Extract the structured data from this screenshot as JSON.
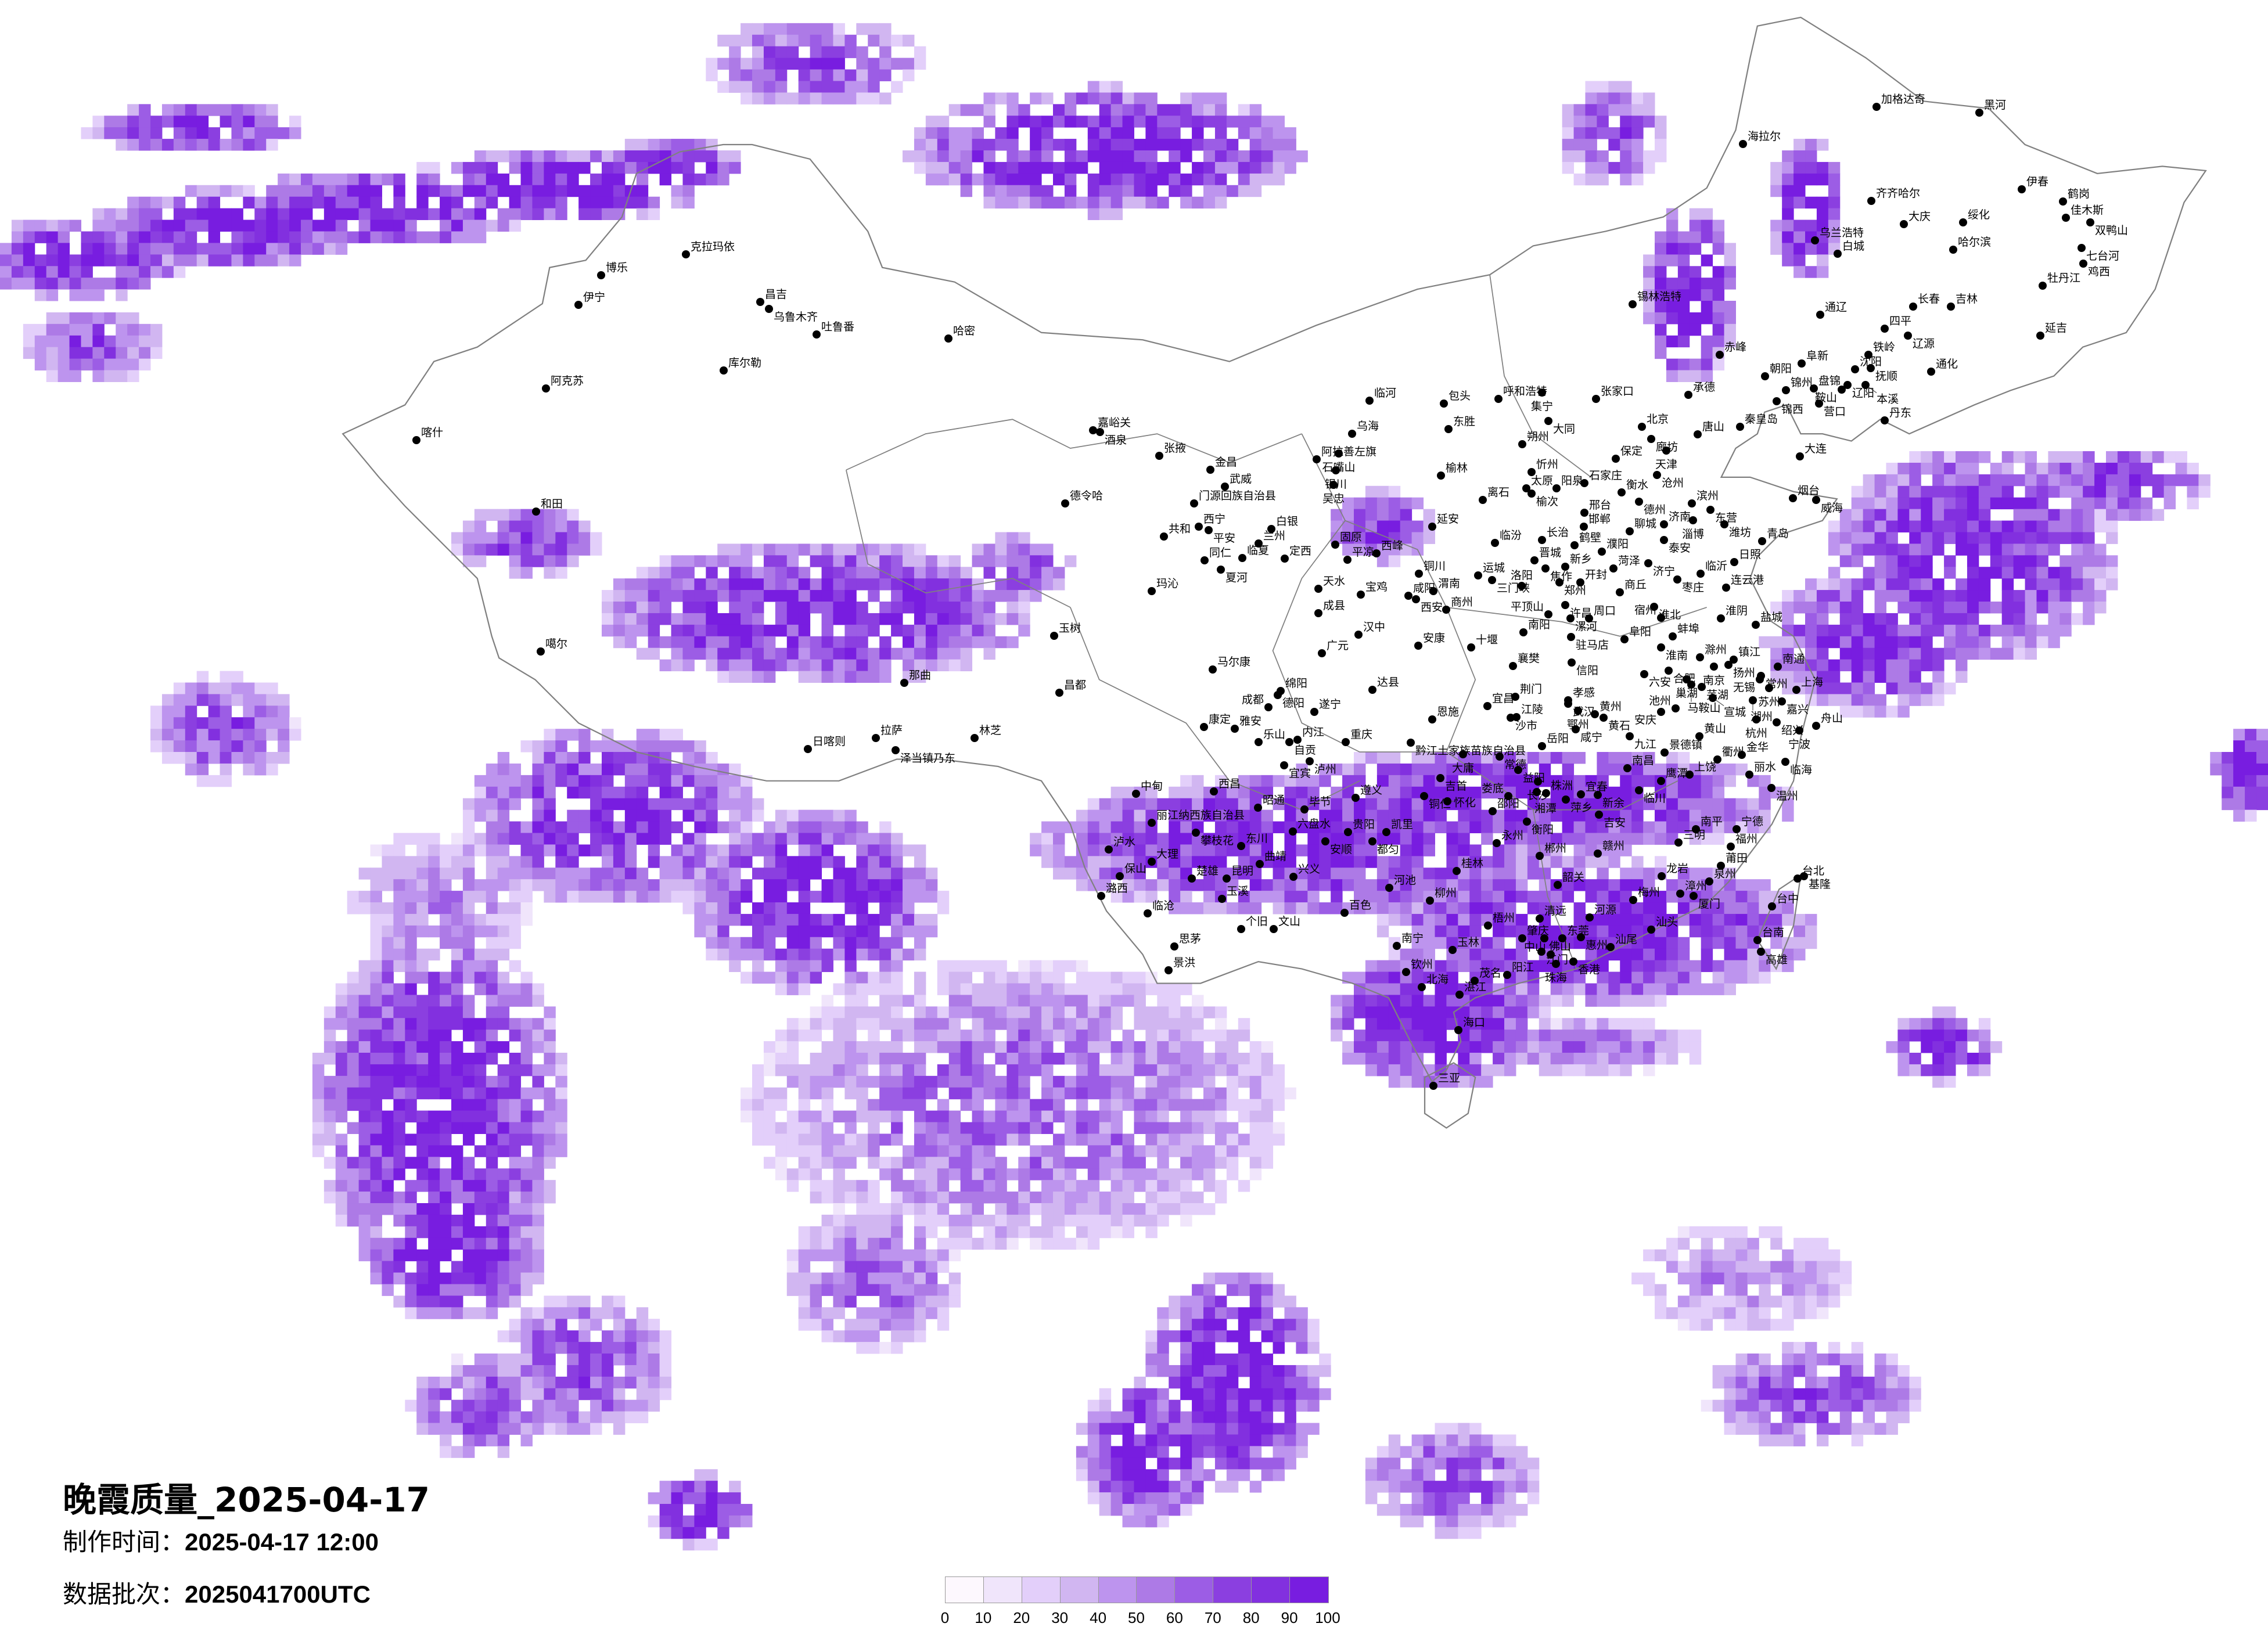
{
  "title": "晚霞质量_2025-04-17",
  "production_time": {
    "label": "制作时间：",
    "value": "2025-04-17 12:00"
  },
  "data_batch": {
    "label": "数据批次：",
    "value": "2025041700UTC"
  },
  "legend": {
    "ticks": [
      "0",
      "10",
      "20",
      "30",
      "40",
      "50",
      "60",
      "70",
      "80",
      "90",
      "100"
    ],
    "colors": [
      "#fdf8fe",
      "#f0e5fb",
      "#e3cffa",
      "#d1b6f1",
      "#bd94ee",
      "#ad7ae6",
      "#9c5de5",
      "#8b3fe0",
      "#8230df",
      "#781de0"
    ]
  },
  "border_color": "#808080",
  "cities": [
    "克拉玛依",
    "博乐",
    "伊宁",
    "昌吉",
    "乌鲁木齐",
    "吐鲁番",
    "哈密",
    "库尔勒",
    "阿克苏",
    "喀什",
    "和田",
    "嘉峪关",
    "酒泉",
    "德令哈",
    "噶尔",
    "玉树",
    "那曲",
    "昌都",
    "日喀则",
    "拉萨",
    "泽当镇乃东",
    "林芝",
    "临河",
    "包头",
    "呼和浩特",
    "集宁",
    "张家口",
    "大同",
    "乌海",
    "东胜",
    "北京",
    "唐山",
    "廊坊",
    "天津",
    "秦皇岛",
    "朔州",
    "张掖",
    "金昌",
    "阿拉善左旗",
    "石嘴山",
    "银川",
    "吴忠",
    "保定",
    "沧州",
    "榆林",
    "忻州",
    "武威",
    "门源回族自治县",
    "太原",
    "榆次",
    "阳泉",
    "石家庄",
    "衡水",
    "德州",
    "离石",
    "滨州",
    "东营",
    "烟台",
    "威海",
    "邢台",
    "西宁",
    "平安",
    "共和",
    "白银",
    "兰州",
    "延安",
    "邯郸",
    "济南",
    "淄博",
    "潍坊",
    "聊城",
    "泰安",
    "青岛",
    "临汾",
    "长治",
    "固原",
    "平凉",
    "西峰",
    "临夏",
    "定西",
    "同仁",
    "夏河",
    "晋城",
    "焦作",
    "新乡",
    "鹤壁",
    "濮阳",
    "菏泽",
    "济宁",
    "日照",
    "临沂",
    "枣庄",
    "连云港",
    "铜川",
    "运城",
    "三门峡",
    "洛阳",
    "郑州",
    "开封",
    "商丘",
    "天水",
    "宝鸡",
    "咸阳",
    "西安",
    "渭南",
    "玛沁",
    "商州",
    "许昌",
    "平顶山",
    "漯河",
    "周口",
    "淮北",
    "宿州",
    "淮阴",
    "盐城",
    "成县",
    "汉中",
    "南阳",
    "驻马店",
    "阜阳",
    "蚌埠",
    "淮南",
    "安康",
    "十堰",
    "广元",
    "马尔康",
    "襄樊",
    "信阳",
    "滁州",
    "镇江",
    "扬州",
    "南通",
    "六安",
    "合肥",
    "巢湖",
    "南京",
    "常州",
    "无锡",
    "马鞍山",
    "芜湖",
    "苏州",
    "上海",
    "绵阳",
    "德阳",
    "达县",
    "荆门",
    "孝感",
    "宣城",
    "湖州",
    "嘉兴",
    "成都",
    "遂宁",
    "宜昌",
    "沙市",
    "江陵",
    "武汉",
    "鄂州",
    "黄州",
    "黄石",
    "池州",
    "安庆",
    "杭州",
    "绍兴",
    "宁波",
    "舟山",
    "恩施",
    "康定",
    "雅安",
    "乐山",
    "内江",
    "自贡",
    "重庆",
    "黔江土家族苗族自治县",
    "咸宁",
    "九江",
    "黄山",
    "岳阳",
    "大庸",
    "常德",
    "景德镇",
    "衢州",
    "金华",
    "临海",
    "宜宾",
    "泸州",
    "益阳",
    "南昌",
    "上饶",
    "丽水",
    "鹰潭",
    "吉首",
    "西昌",
    "中甸",
    "长沙",
    "湘潭",
    "株洲",
    "萍乡",
    "宜春",
    "新余",
    "临川",
    "温州",
    "娄底",
    "铜仁",
    "怀化",
    "遵义",
    "昭通",
    "毕节",
    "邵阳",
    "吉安",
    "丽江纳西族自治县",
    "攀枝花",
    "六盘水",
    "贵阳",
    "凯里",
    "安顺",
    "都匀",
    "衡阳",
    "南平",
    "宁德",
    "三明",
    "福州",
    "东川",
    "永州",
    "泸水",
    "郴州",
    "赣州",
    "大理",
    "曲靖",
    "桂林",
    "莆田",
    "保山",
    "楚雄",
    "昆明",
    "兴义",
    "龙岩",
    "泉州",
    "台北",
    "基隆",
    "韶关",
    "河池",
    "潞西",
    "玉溪",
    "柳州",
    "梅州",
    "漳州",
    "厦门",
    "台中",
    "临沧",
    "百色",
    "清远",
    "河源",
    "梧州",
    "个旧",
    "文山",
    "汕头",
    "肇庆",
    "佛山",
    "东莞",
    "惠州",
    "台南",
    "高雄",
    "思茅",
    "南宁",
    "玉林",
    "汕尾",
    "江门",
    "中山",
    "香港",
    "珠海",
    "景洪",
    "钦州",
    "阳江",
    "茂名",
    "北海",
    "湛江",
    "海口",
    "三亚",
    "加格达奇",
    "黑河",
    "海拉尔",
    "伊春",
    "齐齐哈尔",
    "鹤岗",
    "佳木斯",
    "双鸭山",
    "大庆",
    "绥化",
    "乌兰浩特",
    "白城",
    "哈尔滨",
    "七台河",
    "鸡西",
    "牡丹江",
    "锡林浩特",
    "长春",
    "吉林",
    "通辽",
    "四平",
    "辽源",
    "延吉",
    "铁岭",
    "赤峰",
    "阜新",
    "沈阳",
    "抚顺",
    "通化",
    "朝阳",
    "承德",
    "锦州",
    "盘锦",
    "辽阳",
    "鞍山",
    "本溪",
    "锦西",
    "营口",
    "丹东",
    "大连"
  ]
}
